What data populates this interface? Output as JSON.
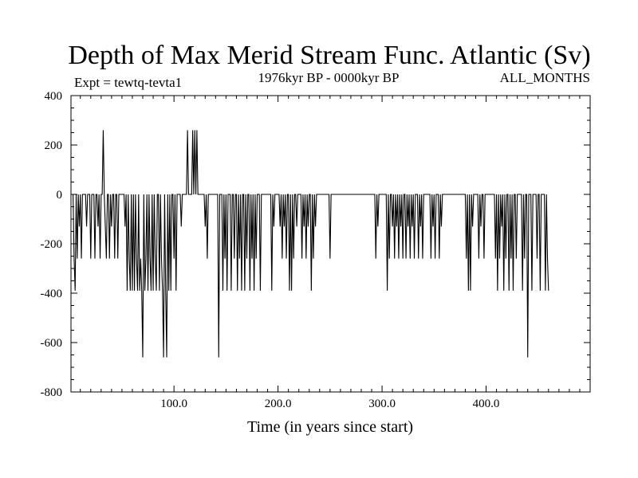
{
  "chart_data": {
    "type": "line",
    "title": "Depth of Max Merid Stream Func. Atlantic (Sv)",
    "expt_label": "Expt = tewtq-tevta1",
    "period_label": "1976kyr BP - 0000kyr BP",
    "season_label": "ALL_MONTHS",
    "xlabel": "Time (in years since start)",
    "ylabel": "",
    "xlim": [
      1,
      500
    ],
    "ylim": [
      -800,
      400
    ],
    "x_ticks": [
      100,
      200,
      300,
      400
    ],
    "x_tick_labels": [
      "100.0",
      "200.0",
      "300.0",
      "400.0"
    ],
    "y_ticks": [
      -800,
      -600,
      -400,
      -200,
      0,
      200,
      400
    ],
    "y_tick_labels": [
      "-800",
      "-600",
      "-400",
      "-200",
      "0",
      "200",
      "400"
    ],
    "grid": false,
    "series": [
      {
        "name": "Depth of Max Merid Stream Func.",
        "x_start": 1,
        "x_step": 1,
        "values": [
          0,
          0,
          0,
          -260,
          -390,
          0,
          -260,
          0,
          -130,
          0,
          -260,
          0,
          0,
          0,
          0,
          -130,
          0,
          0,
          0,
          -260,
          0,
          0,
          0,
          -260,
          0,
          0,
          -130,
          0,
          -260,
          0,
          0,
          260,
          0,
          -130,
          -260,
          0,
          0,
          -260,
          0,
          -130,
          0,
          0,
          -260,
          0,
          0,
          -260,
          0,
          0,
          0,
          0,
          0,
          0,
          -130,
          0,
          -390,
          0,
          -260,
          -390,
          0,
          -390,
          0,
          -390,
          0,
          -260,
          -390,
          0,
          -390,
          -260,
          -390,
          -660,
          0,
          -390,
          -260,
          0,
          -390,
          0,
          -260,
          -390,
          0,
          -390,
          0,
          -260,
          -390,
          0,
          0,
          -390,
          0,
          -260,
          -390,
          -660,
          0,
          -390,
          -660,
          0,
          -390,
          0,
          -390,
          0,
          0,
          -260,
          0,
          -390,
          0,
          0,
          0,
          0,
          -130,
          0,
          0,
          0,
          0,
          0,
          260,
          0,
          0,
          0,
          0,
          260,
          0,
          260,
          0,
          260,
          0,
          0,
          0,
          0,
          0,
          0,
          0,
          -130,
          0,
          -260,
          0,
          0,
          0,
          0,
          0,
          0,
          0,
          0,
          0,
          0,
          -660,
          0,
          0,
          0,
          -390,
          0,
          -260,
          0,
          -390,
          0,
          0,
          0,
          -390,
          0,
          0,
          -260,
          0,
          0,
          -390,
          0,
          -260,
          0,
          -390,
          0,
          0,
          -390,
          0,
          -260,
          0,
          0,
          -390,
          0,
          -260,
          0,
          -390,
          0,
          -260,
          0,
          0,
          0,
          -390,
          0,
          0,
          0,
          0,
          0,
          0,
          0,
          0,
          0,
          0,
          -390,
          0,
          -130,
          0,
          0,
          0,
          0,
          0,
          -130,
          0,
          -260,
          0,
          -130,
          0,
          -260,
          0,
          0,
          -390,
          0,
          -390,
          0,
          -260,
          0,
          0,
          -130,
          0,
          0,
          0,
          0,
          -260,
          0,
          -130,
          0,
          -260,
          0,
          -130,
          0,
          0,
          -390,
          0,
          -260,
          0,
          -130,
          0,
          0,
          0,
          0,
          0,
          0,
          0,
          0,
          0,
          0,
          0,
          0,
          0,
          -260,
          0,
          0,
          0,
          0,
          0,
          0,
          0,
          0,
          0,
          0,
          0,
          0,
          0,
          0,
          0,
          0,
          0,
          0,
          0,
          0,
          0,
          0,
          0,
          0,
          0,
          0,
          0,
          0,
          0,
          0,
          0,
          0,
          0,
          0,
          0,
          0,
          0,
          0,
          0,
          0,
          0,
          0,
          0,
          -260,
          0,
          -130,
          0,
          0,
          0,
          0,
          0,
          0,
          0,
          0,
          -390,
          0,
          -260,
          0,
          0,
          -130,
          0,
          -260,
          0,
          -130,
          0,
          -260,
          0,
          -130,
          0,
          -260,
          0,
          0,
          -260,
          0,
          -130,
          0,
          -260,
          0,
          -130,
          0,
          -260,
          0,
          0,
          0,
          -260,
          0,
          -130,
          0,
          -260,
          0,
          0,
          0,
          0,
          0,
          0,
          0,
          -260,
          0,
          -130,
          0,
          -260,
          0,
          0,
          0,
          -260,
          0,
          -130,
          0,
          0,
          0,
          0,
          0,
          0,
          0,
          0,
          0,
          0,
          0,
          0,
          0,
          0,
          0,
          0,
          0,
          0,
          0,
          0,
          0,
          0,
          0,
          -260,
          0,
          -390,
          0,
          -390,
          0,
          -130,
          0,
          0,
          0,
          0,
          0,
          -260,
          0,
          -130,
          0,
          0,
          -260,
          0,
          0,
          0,
          0,
          0,
          0,
          0,
          0,
          0,
          0,
          -260,
          0,
          -390,
          0,
          -260,
          0,
          -130,
          0,
          -390,
          0,
          -260,
          0,
          0,
          -390,
          0,
          -260,
          0,
          -390,
          0,
          0,
          -260,
          0,
          0,
          0,
          0,
          0,
          -390,
          0,
          -260,
          0,
          0,
          -660,
          0,
          0,
          0,
          -390,
          0,
          0,
          0,
          0,
          -260,
          0,
          0,
          -390,
          0,
          0,
          0,
          0,
          -390,
          0,
          -260,
          -390
        ]
      }
    ]
  }
}
